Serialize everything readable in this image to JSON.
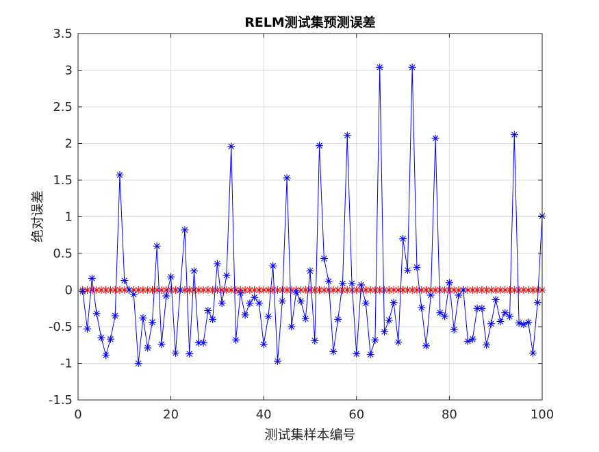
{
  "chart_data": {
    "type": "line",
    "title": "RELM测试集预测误差",
    "xlabel": "测试集样本编号",
    "ylabel": "绝对误差",
    "xlim": [
      0,
      100
    ],
    "ylim": [
      -1.5,
      3.5
    ],
    "xticks": [
      0,
      20,
      40,
      60,
      80,
      100
    ],
    "xtick_labels": [
      "0",
      "20",
      "40",
      "60",
      "80",
      "100"
    ],
    "yticks": [
      -1.5,
      -1,
      -0.5,
      0,
      0.5,
      1,
      1.5,
      2,
      2.5,
      3,
      3.5
    ],
    "ytick_labels": [
      "-1.5",
      "-1",
      "-0.5",
      "0",
      "0.5",
      "1",
      "1.5",
      "2",
      "2.5",
      "3",
      "3.5"
    ],
    "grid": true,
    "x": [
      1,
      2,
      3,
      4,
      5,
      6,
      7,
      8,
      9,
      10,
      11,
      12,
      13,
      14,
      15,
      16,
      17,
      18,
      19,
      20,
      21,
      22,
      23,
      24,
      25,
      26,
      27,
      28,
      29,
      30,
      31,
      32,
      33,
      34,
      35,
      36,
      37,
      38,
      39,
      40,
      41,
      42,
      43,
      44,
      45,
      46,
      47,
      48,
      49,
      50,
      51,
      52,
      53,
      54,
      55,
      56,
      57,
      58,
      59,
      60,
      61,
      62,
      63,
      64,
      65,
      66,
      67,
      68,
      69,
      70,
      71,
      72,
      73,
      74,
      75,
      76,
      77,
      78,
      79,
      80,
      81,
      82,
      83,
      84,
      85,
      86,
      87,
      88,
      89,
      90,
      91,
      92,
      93,
      94,
      95,
      96,
      97,
      98,
      99,
      100
    ],
    "series": [
      {
        "color": "#0000ff",
        "marker": "asterisk",
        "line": true,
        "values": [
          -0.02,
          -0.53,
          0.16,
          -0.32,
          -0.65,
          -0.89,
          -0.67,
          -0.35,
          1.57,
          0.13,
          0.0,
          -0.06,
          -1.0,
          -0.38,
          -0.79,
          -0.44,
          0.6,
          -0.74,
          -0.08,
          0.18,
          -0.86,
          0.0,
          0.82,
          -0.87,
          0.26,
          -0.72,
          -0.72,
          -0.28,
          -0.4,
          0.36,
          -0.18,
          0.2,
          1.96,
          -0.68,
          -0.04,
          -0.34,
          -0.18,
          -0.1,
          -0.18,
          -0.74,
          -0.36,
          0.33,
          -0.97,
          -0.15,
          1.53,
          -0.5,
          -0.03,
          -0.15,
          -0.39,
          0.26,
          -0.69,
          1.97,
          0.43,
          0.12,
          -0.84,
          -0.4,
          0.09,
          2.11,
          0.09,
          -0.87,
          0.07,
          -0.18,
          -0.88,
          -0.68,
          3.04,
          -0.57,
          -0.41,
          -0.17,
          -0.71,
          0.7,
          0.27,
          3.04,
          0.31,
          -0.24,
          -0.76,
          -0.07,
          2.07,
          -0.31,
          -0.36,
          0.1,
          -0.54,
          -0.07,
          0.0,
          -0.7,
          -0.67,
          -0.25,
          -0.25,
          -0.75,
          -0.46,
          -0.13,
          -0.43,
          -0.31,
          -0.36,
          2.12,
          -0.45,
          -0.47,
          -0.44,
          -0.86,
          -0.17,
          1.01
        ]
      },
      {
        "color": "#ff0000",
        "marker": "asterisk",
        "line": false,
        "values": [
          0,
          0,
          0,
          0,
          0,
          0,
          0,
          0,
          0,
          0,
          0,
          0,
          0,
          0,
          0,
          0,
          0,
          0,
          0,
          0,
          0,
          0,
          0,
          0,
          0,
          0,
          0,
          0,
          0,
          0,
          0,
          0,
          0,
          0,
          0,
          0,
          0,
          0,
          0,
          0,
          0,
          0,
          0,
          0,
          0,
          0,
          0,
          0,
          0,
          0,
          0,
          0,
          0,
          0,
          0,
          0,
          0,
          0,
          0,
          0,
          0,
          0,
          0,
          0,
          0,
          0,
          0,
          0,
          0,
          0,
          0,
          0,
          0,
          0,
          0,
          0,
          0,
          0,
          0,
          0,
          0,
          0,
          0,
          0,
          0,
          0,
          0,
          0,
          0,
          0,
          0,
          0,
          0,
          0,
          0,
          0,
          0,
          0,
          0,
          0
        ]
      }
    ]
  }
}
